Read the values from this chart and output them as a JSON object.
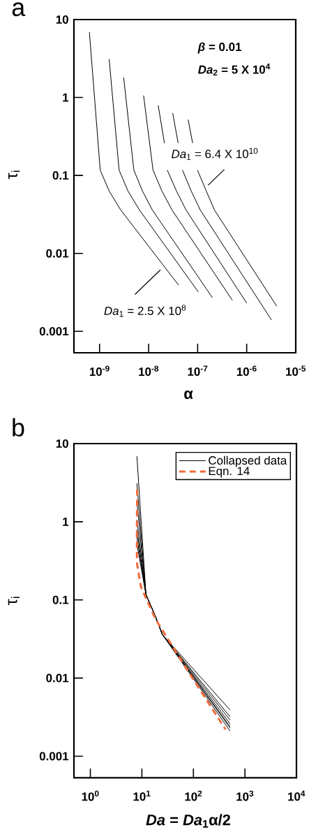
{
  "chart_data": [
    {
      "type": "line",
      "title": "a",
      "xlabel": "α",
      "ylabel": "τ$_{i}$",
      "log": "xy",
      "marker": "none",
      "line_style": "solid",
      "xlim": [
        3e-10,
        1e-05
      ],
      "ylim": [
        0.00053,
        10
      ],
      "xticks": [
        {
          "value": 1e-09,
          "label": "10$^{-9}$"
        },
        {
          "value": 1e-08,
          "label": "10$^{-8}$"
        },
        {
          "value": 1e-07,
          "label": "10$^{-7}$"
        },
        {
          "value": 1e-06,
          "label": "10$^{-6}$"
        },
        {
          "value": 1e-05,
          "label": "10$^{-5}$"
        }
      ],
      "yticks": [
        0.001,
        0.01,
        0.1,
        1,
        10
      ],
      "series": [
        {
          "color": "#000000",
          "x": [
            6.2e-10,
            1.03e-09,
            1.57e-09,
            2.7e-09,
            4.1e-08
          ],
          "values": [
            6.9,
            0.117,
            0.063,
            0.036,
            0.0039
          ]
        },
        {
          "color": "#000000",
          "x": [
            1.57e-09,
            2.5e-09,
            3.8e-09,
            6.5e-09,
            1.03e-07
          ],
          "values": [
            3.1,
            0.117,
            0.063,
            0.036,
            0.0032
          ]
        },
        {
          "color": "#000000",
          "x": [
            3.1e-09,
            5e-09,
            7.5e-09,
            1.19e-08,
            2e-07
          ],
          "values": [
            1.8,
            0.117,
            0.063,
            0.036,
            0.0027
          ]
        },
        {
          "color": "#000000",
          "x": [
            7.9e-09,
            1.23e-08,
            1.87e-08,
            3e-08,
            5.1e-07
          ],
          "values": [
            1.06,
            0.117,
            0.063,
            0.036,
            0.0025
          ]
        },
        {
          "color": "#000000",
          "x": [
            1.57e-08,
            2.1e-08,
            2.2e-08,
            2.4e-08,
            3.7e-08,
            5.8e-08,
            1e-06
          ],
          "values": [
            0.79,
            0.26,
            null,
            0.117,
            0.063,
            0.036,
            0.0023
          ]
        },
        {
          "color": "#000000",
          "x": [
            3.1e-08,
            4e-08,
            4.4e-08,
            4.9e-08,
            7.4e-08,
            1.13e-07,
            3.2e-06
          ],
          "values": [
            0.63,
            0.26,
            null,
            0.117,
            0.063,
            0.036,
            0.0014
          ]
        },
        {
          "color": "#000000",
          "x": [
            6.4e-08,
            7.9e-08,
            8.8e-08,
            9.9e-08,
            1.5e-07,
            2.2e-07,
            4.1e-06
          ],
          "values": [
            0.52,
            0.26,
            null,
            0.117,
            0.063,
            0.036,
            0.0021
          ]
        }
      ],
      "annotations": [
        "*β*   = 0.01",
        "*Da*$_{2}$ = 5 X 10$^{4}$",
        "*Da*$_{1}$ = 6.4 X 10$^{10}$",
        "*Da*$_{1}$ = 2.5 X 10$^{8}$"
      ]
    },
    {
      "type": "line",
      "title": "b",
      "xlabel": "*Da* = *Da*$_{1}$α/2",
      "ylabel": "τ$_{i}$",
      "log": "xy",
      "marker": "none",
      "line_style": "solid",
      "legend": "top right",
      "xlim": [
        0.48,
        10000
      ],
      "ylim": [
        0.00053,
        10
      ],
      "xticks": [
        {
          "value": 1,
          "label": "10$^{0}$"
        },
        {
          "value": 10,
          "label": "10$^{1}$"
        },
        {
          "value": 100,
          "label": "10$^{2}$"
        },
        {
          "value": 1000,
          "label": "10$^{3}$"
        },
        {
          "value": 10000,
          "label": "10$^{4}$"
        }
      ],
      "yticks": [
        0.001,
        0.01,
        0.1,
        1,
        10
      ],
      "x": [
        8.0,
        12,
        18,
        25,
        515
      ],
      "series": [
        {
          "name": "Collapsed data",
          "color": "#000000",
          "values": [
            6.9,
            0.117,
            0.063,
            0.036,
            0.0039
          ]
        },
        {
          "color": "#000000",
          "values": [
            3.1,
            0.117,
            0.063,
            0.036,
            0.0032
          ]
        },
        {
          "color": "#000000",
          "values": [
            1.8,
            0.117,
            0.063,
            0.036,
            0.0029
          ]
        },
        {
          "color": "#000000",
          "values": [
            1.06,
            0.117,
            0.063,
            0.036,
            0.0026
          ]
        },
        {
          "color": "#000000",
          "values": [
            0.79,
            0.117,
            0.063,
            0.036,
            0.0024
          ]
        },
        {
          "color": "#000000",
          "values": [
            0.63,
            0.117,
            0.063,
            0.036,
            0.0023
          ]
        },
        {
          "color": "#000000",
          "values": [
            0.52,
            0.117,
            0.063,
            0.036,
            0.0021
          ]
        },
        {
          "name": "Eqn. 14",
          "color": "#f26b3a",
          "line_style": "dashed",
          "x": [
            8.1,
            8.0,
            8.0,
            9.5,
            12,
            18.6,
            72,
            420
          ],
          "values": [
            2.6,
            1.0,
            0.3,
            0.15,
            0.105,
            0.056,
            0.0134,
            0.0022
          ]
        }
      ]
    }
  ]
}
